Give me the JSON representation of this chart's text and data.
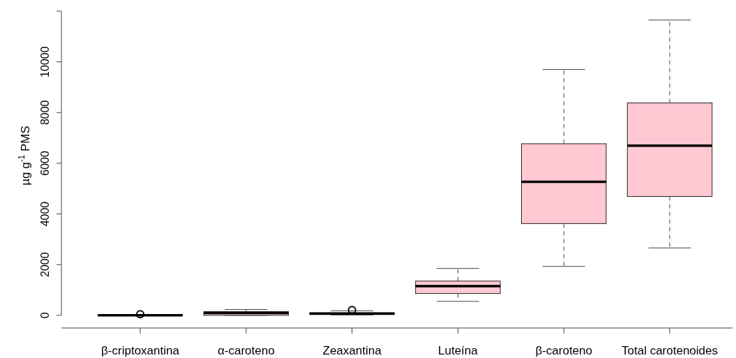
{
  "chart_data": {
    "type": "box",
    "ylabel": "µg g$^{-1}$ PMS",
    "categories": [
      "β-criptoxantina",
      "α-caroteno",
      "Zeaxantina",
      "Luteína",
      "β-caroteno",
      "Total carotenoides"
    ],
    "color": "#ffc8d2",
    "ylim": [
      -500,
      12000
    ],
    "yticks": [
      0,
      2000,
      4000,
      6000,
      8000,
      10000,
      {
        "value": 12000,
        "label": null
      }
    ],
    "grid": false,
    "boxes": [
      {
        "low": 0,
        "q1": 0,
        "median": 5,
        "q3": 10,
        "high": 20,
        "outliers": [
          45
        ]
      },
      {
        "low": 0,
        "q1": 0,
        "median": 90,
        "q3": 145,
        "high": 230
      },
      {
        "low": 15,
        "q1": 30,
        "median": 70,
        "q3": 95,
        "high": 180,
        "outliers": [
          210
        ]
      },
      {
        "low": 550,
        "q1": 860,
        "median": 1150,
        "q3": 1350,
        "high": 1850
      },
      {
        "low": 1930,
        "q1": 3620,
        "median": 5270,
        "q3": 6770,
        "high": 9700
      },
      {
        "low": 2660,
        "q1": 4690,
        "median": 6690,
        "q3": 8380,
        "high": 11650
      }
    ]
  }
}
